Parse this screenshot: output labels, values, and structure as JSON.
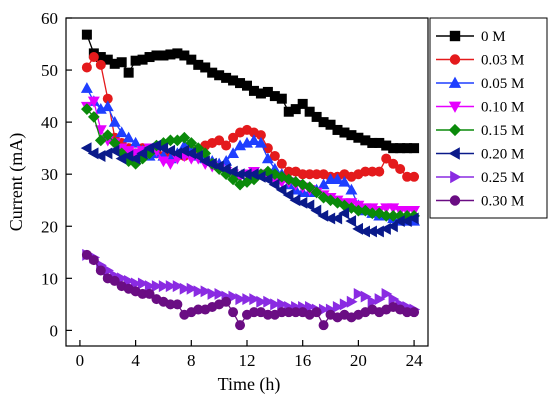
{
  "chart_data": {
    "type": "line",
    "xlabel": "Time (h)",
    "ylabel": "Current (mA)",
    "xlim": [
      -1,
      25
    ],
    "ylim": [
      -3,
      60
    ],
    "xticks": [
      0,
      4,
      8,
      12,
      16,
      20,
      24
    ],
    "yticks": [
      0,
      10,
      20,
      30,
      40,
      50,
      60
    ],
    "xtick_labels": [
      "0",
      "4",
      "8",
      "12",
      "16",
      "20",
      "24"
    ],
    "ytick_labels": [
      "0",
      "10",
      "20",
      "30",
      "40",
      "50",
      "60"
    ],
    "grid": false,
    "legend_placement": "right, outside",
    "series": [
      {
        "name": "0 M",
        "color": "#000000",
        "marker": "square",
        "x": [
          0.5,
          1.0,
          1.5,
          2.0,
          2.5,
          3.0,
          3.5,
          4.0,
          4.5,
          5.0,
          5.5,
          6.0,
          6.5,
          7.0,
          7.5,
          8.0,
          8.5,
          9.0,
          9.5,
          10.0,
          10.5,
          11.0,
          11.5,
          12.0,
          12.5,
          13.0,
          13.5,
          14.0,
          14.5,
          15.0,
          15.5,
          16.0,
          16.5,
          17.0,
          17.5,
          18.0,
          18.5,
          19.0,
          19.5,
          20.0,
          20.5,
          21.0,
          21.5,
          22.0,
          22.5,
          23.0,
          23.5,
          24.0
        ],
        "y": [
          56.8,
          53.2,
          52.5,
          52.0,
          51.2,
          51.5,
          49.5,
          51.8,
          52.0,
          52.5,
          52.8,
          52.8,
          53.0,
          53.2,
          52.8,
          52.0,
          51.0,
          50.5,
          49.5,
          49.0,
          48.5,
          48.0,
          47.5,
          47.0,
          46.0,
          45.5,
          45.8,
          45.0,
          44.5,
          42.0,
          42.5,
          43.5,
          42.0,
          41.0,
          40.0,
          39.5,
          38.5,
          38.0,
          37.5,
          37.0,
          36.5,
          36.0,
          36.0,
          35.5,
          35.0,
          35.0,
          35.0,
          35.0
        ]
      },
      {
        "name": "0.03 M",
        "color": "#e41a1c",
        "marker": "circle",
        "x": [
          0.5,
          1.0,
          1.5,
          2.0,
          2.5,
          3.0,
          3.5,
          4.0,
          4.5,
          5.0,
          5.5,
          6.0,
          6.5,
          7.0,
          7.5,
          8.0,
          8.5,
          9.0,
          9.5,
          10.0,
          10.5,
          11.0,
          11.5,
          12.0,
          12.5,
          13.0,
          13.5,
          14.0,
          14.5,
          15.0,
          15.5,
          16.0,
          16.5,
          17.0,
          17.5,
          18.0,
          18.5,
          19.0,
          19.5,
          20.0,
          20.5,
          21.0,
          21.5,
          22.0,
          22.5,
          23.0,
          23.5,
          24.0
        ],
        "y": [
          50.5,
          52.5,
          51.0,
          44.5,
          37.0,
          36.0,
          35.0,
          34.0,
          35.0,
          34.5,
          34.0,
          33.5,
          34.0,
          33.5,
          33.5,
          34.5,
          34.0,
          35.5,
          36.0,
          36.5,
          35.5,
          37.0,
          38.0,
          38.5,
          38.0,
          37.5,
          35.0,
          33.5,
          32.0,
          30.5,
          30.5,
          30.0,
          30.0,
          30.0,
          30.0,
          29.5,
          29.5,
          30.0,
          29.5,
          30.0,
          30.5,
          30.5,
          30.5,
          33.0,
          32.0,
          31.0,
          29.5,
          29.5
        ]
      },
      {
        "name": "0.05 M",
        "color": "#1f3fff",
        "marker": "triangle-up",
        "x": [
          0.5,
          1.0,
          1.5,
          2.0,
          2.5,
          3.0,
          3.5,
          4.0,
          4.5,
          5.0,
          5.5,
          6.0,
          6.5,
          7.0,
          7.5,
          8.0,
          8.5,
          9.0,
          9.5,
          10.0,
          10.5,
          11.0,
          11.5,
          12.0,
          12.5,
          13.0,
          13.5,
          14.0,
          14.5,
          15.0,
          15.5,
          16.0,
          16.5,
          17.0,
          17.5,
          18.0,
          18.5,
          19.0,
          19.5,
          20.0,
          20.5,
          21.0,
          21.5,
          22.0,
          22.5,
          23.0,
          23.5,
          24.0
        ],
        "y": [
          46.5,
          44.0,
          42.5,
          43.0,
          40.0,
          38.0,
          37.0,
          36.0,
          34.5,
          33.5,
          34.0,
          33.5,
          33.0,
          34.0,
          35.5,
          34.5,
          33.5,
          33.0,
          32.5,
          32.0,
          32.5,
          34.0,
          35.5,
          36.0,
          36.5,
          36.0,
          33.0,
          31.0,
          30.0,
          28.0,
          27.0,
          26.5,
          26.5,
          27.0,
          28.0,
          29.0,
          29.0,
          28.5,
          27.0,
          24.0,
          23.0,
          22.5,
          22.0,
          22.0,
          21.5,
          21.0,
          21.0,
          21.0
        ]
      },
      {
        "name": "0.10 M",
        "color": "#e600ff",
        "marker": "triangle-down",
        "x": [
          0.5,
          1.0,
          1.5,
          2.0,
          2.5,
          3.0,
          3.5,
          4.0,
          4.5,
          5.0,
          5.5,
          6.0,
          6.5,
          7.0,
          7.5,
          8.0,
          8.5,
          9.0,
          9.5,
          10.0,
          10.5,
          11.0,
          11.5,
          12.0,
          12.5,
          13.0,
          13.5,
          14.0,
          14.5,
          15.0,
          15.5,
          16.0,
          16.5,
          17.0,
          17.5,
          18.0,
          18.5,
          19.0,
          19.5,
          20.0,
          20.5,
          21.0,
          21.5,
          22.0,
          22.5,
          23.0,
          23.5,
          24.0
        ],
        "y": [
          43.0,
          44.0,
          38.5,
          36.5,
          36.0,
          35.0,
          34.5,
          34.0,
          34.5,
          35.0,
          34.5,
          32.5,
          32.0,
          33.0,
          33.5,
          33.0,
          33.0,
          32.0,
          31.5,
          31.0,
          30.5,
          30.0,
          29.5,
          30.0,
          30.5,
          30.0,
          29.5,
          29.0,
          28.5,
          28.5,
          28.0,
          27.5,
          27.0,
          26.5,
          26.0,
          25.5,
          25.0,
          24.5,
          24.5,
          24.0,
          23.5,
          23.5,
          23.0,
          23.5,
          23.5,
          23.0,
          23.0,
          23.0
        ]
      },
      {
        "name": "0.15 M",
        "color": "#0a8a0a",
        "marker": "diamond",
        "x": [
          0.5,
          1.0,
          1.5,
          2.0,
          2.5,
          3.0,
          3.5,
          4.0,
          4.5,
          5.0,
          5.5,
          6.0,
          6.5,
          7.0,
          7.5,
          8.0,
          8.5,
          9.0,
          9.5,
          10.0,
          10.5,
          11.0,
          11.5,
          12.0,
          12.5,
          13.0,
          13.5,
          14.0,
          14.5,
          15.0,
          15.5,
          16.0,
          16.5,
          17.0,
          17.5,
          18.0,
          18.5,
          19.0,
          19.5,
          20.0,
          20.5,
          21.0,
          21.5,
          22.0,
          22.5,
          23.0,
          23.5,
          24.0
        ],
        "y": [
          42.5,
          41.0,
          36.5,
          37.5,
          36.0,
          34.0,
          32.5,
          32.0,
          33.0,
          34.0,
          35.5,
          36.0,
          36.5,
          36.5,
          37.0,
          36.0,
          35.0,
          34.0,
          32.0,
          31.0,
          30.0,
          29.0,
          28.0,
          28.5,
          29.0,
          30.0,
          30.5,
          30.0,
          29.5,
          29.0,
          28.5,
          28.0,
          27.5,
          26.5,
          25.5,
          25.0,
          24.5,
          24.0,
          23.5,
          23.0,
          23.0,
          22.5,
          22.5,
          22.0,
          22.0,
          22.0,
          22.0,
          22.0
        ]
      },
      {
        "name": "0.20 M",
        "color": "#0a1a8a",
        "marker": "triangle-left",
        "x": [
          0.5,
          1.0,
          1.5,
          2.0,
          2.5,
          3.0,
          3.5,
          4.0,
          4.5,
          5.0,
          5.5,
          6.0,
          6.5,
          7.0,
          7.5,
          8.0,
          8.5,
          9.0,
          9.5,
          10.0,
          10.5,
          11.0,
          11.5,
          12.0,
          12.5,
          13.0,
          13.5,
          14.0,
          14.5,
          15.0,
          15.5,
          16.0,
          16.5,
          17.0,
          17.5,
          18.0,
          18.5,
          19.0,
          19.5,
          20.0,
          20.5,
          21.0,
          21.5,
          22.0,
          22.5,
          23.0,
          23.5,
          24.0
        ],
        "y": [
          35.0,
          34.0,
          33.5,
          34.0,
          34.5,
          33.0,
          33.5,
          33.0,
          34.0,
          35.0,
          35.5,
          35.0,
          34.5,
          34.0,
          34.5,
          34.0,
          33.5,
          32.5,
          32.0,
          31.5,
          31.0,
          30.5,
          30.0,
          30.0,
          30.0,
          29.5,
          29.0,
          28.0,
          27.0,
          26.0,
          25.0,
          24.5,
          24.0,
          23.0,
          22.0,
          21.5,
          21.5,
          22.5,
          21.0,
          19.5,
          19.0,
          19.0,
          19.0,
          19.5,
          20.0,
          21.0,
          21.0,
          21.5
        ]
      },
      {
        "name": "0.25 M",
        "color": "#8a2be2",
        "marker": "triangle-right",
        "x": [
          0.5,
          1.0,
          1.5,
          2.0,
          2.5,
          3.0,
          3.5,
          4.0,
          4.5,
          5.0,
          5.5,
          6.0,
          6.5,
          7.0,
          7.5,
          8.0,
          8.5,
          9.0,
          9.5,
          10.0,
          10.5,
          11.0,
          11.5,
          12.0,
          12.5,
          13.0,
          13.5,
          14.0,
          14.5,
          15.0,
          15.5,
          16.0,
          16.5,
          17.0,
          17.5,
          18.0,
          18.5,
          19.0,
          19.5,
          20.0,
          20.5,
          21.0,
          21.5,
          22.0,
          22.5,
          23.0,
          23.5,
          24.0
        ],
        "y": [
          14.5,
          14.0,
          12.5,
          11.5,
          10.5,
          10.0,
          9.5,
          9.0,
          9.0,
          8.5,
          8.5,
          8.5,
          8.5,
          8.5,
          8.0,
          8.0,
          7.5,
          7.5,
          7.0,
          7.0,
          6.5,
          6.5,
          6.0,
          6.0,
          6.0,
          5.5,
          5.5,
          5.0,
          5.0,
          4.5,
          4.5,
          4.5,
          4.5,
          4.0,
          4.0,
          4.0,
          4.5,
          5.0,
          5.5,
          7.0,
          6.5,
          5.5,
          6.0,
          7.0,
          6.0,
          5.0,
          4.5,
          4.0
        ]
      },
      {
        "name": "0.30 M",
        "color": "#6a0d83",
        "marker": "circle",
        "x": [
          0.5,
          1.0,
          1.5,
          2.0,
          2.5,
          3.0,
          3.5,
          4.0,
          4.5,
          5.0,
          5.5,
          6.0,
          6.5,
          7.0,
          7.5,
          8.0,
          8.5,
          9.0,
          9.5,
          10.0,
          10.5,
          11.0,
          11.5,
          12.0,
          12.5,
          13.0,
          13.5,
          14.0,
          14.5,
          15.0,
          15.5,
          16.0,
          16.5,
          17.0,
          17.5,
          18.0,
          18.5,
          19.0,
          19.5,
          20.0,
          20.5,
          21.0,
          21.5,
          22.0,
          22.5,
          23.0,
          23.5,
          24.0
        ],
        "y": [
          14.5,
          13.5,
          11.5,
          10.0,
          9.5,
          8.5,
          8.0,
          7.5,
          7.0,
          7.0,
          6.0,
          5.5,
          5.0,
          5.0,
          3.0,
          3.5,
          4.0,
          4.0,
          4.5,
          5.0,
          5.5,
          3.5,
          1.0,
          3.0,
          3.5,
          3.5,
          3.0,
          3.0,
          3.5,
          3.5,
          3.5,
          3.5,
          3.0,
          3.5,
          1.0,
          3.0,
          2.5,
          3.0,
          2.5,
          3.0,
          3.5,
          4.0,
          3.5,
          4.0,
          4.5,
          4.0,
          3.5,
          3.5
        ]
      }
    ]
  }
}
